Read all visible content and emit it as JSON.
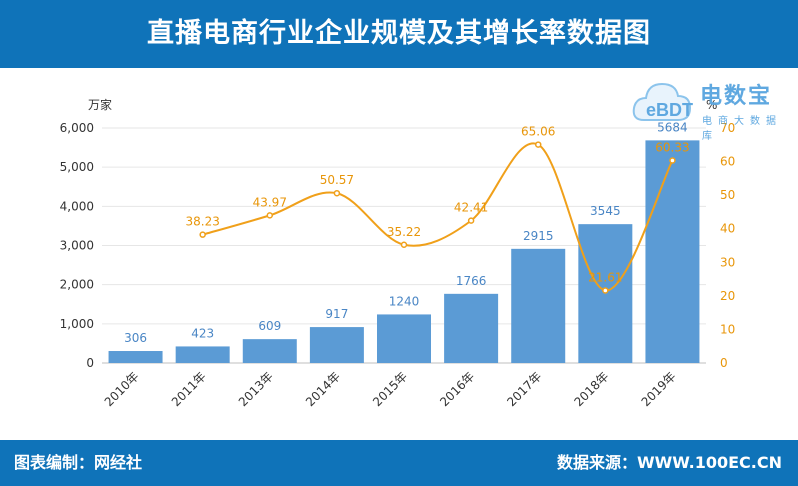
{
  "header": {
    "title": "直播电商行业企业规模及其增长率数据图"
  },
  "footer": {
    "left": "图表编制：网经社",
    "right": "数据来源：WWW.100EC.CN"
  },
  "logo": {
    "main": "电数宝",
    "sub": "电商大数据库",
    "icon": "cloud-ebdt-icon"
  },
  "colors": {
    "header": "#0f73b9",
    "bar": "#5b9bd5",
    "line": "#f0a01a"
  },
  "chart_data": {
    "type": "bar",
    "categories": [
      "2010年",
      "2011年",
      "2013年",
      "2014年",
      "2015年",
      "2016年",
      "2017年",
      "2018年",
      "2019年"
    ],
    "series": [
      {
        "type": "bar",
        "axis": "left",
        "values": [
          306,
          423,
          609,
          917,
          1240,
          1766,
          2915,
          3545,
          5684
        ]
      },
      {
        "type": "line",
        "axis": "right",
        "values": [
          null,
          38.23,
          43.97,
          50.57,
          35.22,
          42.41,
          65.06,
          21.61,
          60.33
        ]
      }
    ],
    "ylabel": "万家",
    "y2label": "%",
    "ylim": [
      0,
      6000
    ],
    "y2lim": [
      0,
      70
    ],
    "yticks": [
      "0",
      "1,000",
      "2,000",
      "3,000",
      "4,000",
      "5,000",
      "6,000"
    ],
    "y2ticks": [
      "0",
      "10",
      "20",
      "30",
      "40",
      "50",
      "60",
      "70"
    ],
    "grid": true
  }
}
